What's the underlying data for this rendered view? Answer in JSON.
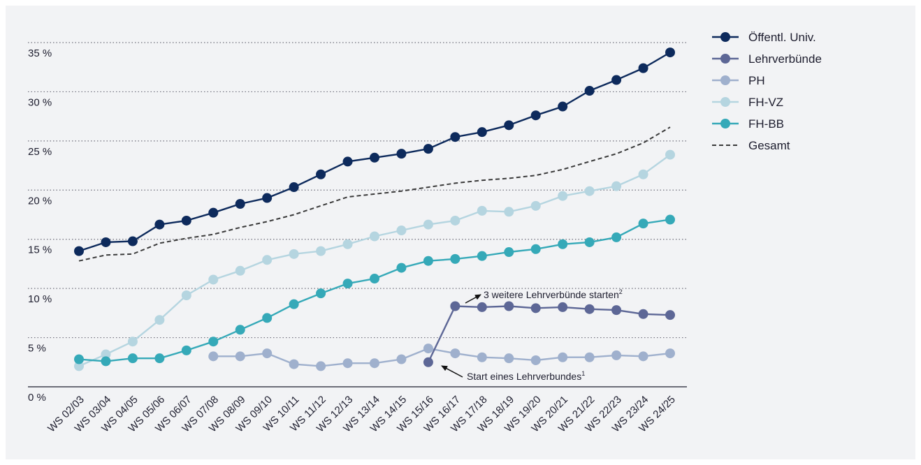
{
  "chart_data": {
    "type": "line",
    "title": "",
    "xlabel": "",
    "ylabel": "",
    "y_unit_suffix": " %",
    "ylim": [
      0,
      35
    ],
    "yticks": [
      0,
      5,
      10,
      15,
      20,
      25,
      30,
      35
    ],
    "grid": "horizontal dotted",
    "legend_position": "top-right",
    "categories": [
      "WS 02/03",
      "WS 03/04",
      "WS 04/05",
      "WS 05/06",
      "WS 06/07",
      "WS 07/08",
      "WS 08/09",
      "WS 09/10",
      "WS 10/11",
      "WS 11/12",
      "WS 12/13",
      "WS 13/14",
      "WS 14/15",
      "WS 15/16",
      "WS 16/17",
      "WS 17/18",
      "WS 18/19",
      "WS 19/20",
      "WS 20/21",
      "WS 21/22",
      "WS 22/23",
      "WS 23/24",
      "WS 24/25"
    ],
    "series": [
      {
        "name": "Öffentl. Univ.",
        "color": "#0d2a5c",
        "style": "marker",
        "values": [
          13.8,
          14.7,
          14.8,
          16.5,
          16.9,
          17.7,
          18.6,
          19.2,
          20.3,
          21.6,
          22.9,
          23.3,
          23.7,
          24.2,
          25.4,
          25.9,
          26.6,
          27.6,
          28.5,
          30.1,
          31.2,
          32.4,
          34.0
        ]
      },
      {
        "name": "Lehrverbünde",
        "color": "#5d6796",
        "style": "marker",
        "values": [
          null,
          null,
          null,
          null,
          null,
          null,
          null,
          null,
          null,
          null,
          null,
          null,
          null,
          2.5,
          8.2,
          8.1,
          8.2,
          8.0,
          8.1,
          7.9,
          7.8,
          7.4,
          7.3
        ]
      },
      {
        "name": "PH",
        "color": "#9fb0cd",
        "style": "marker",
        "values": [
          null,
          null,
          null,
          null,
          null,
          3.1,
          3.1,
          3.4,
          2.3,
          2.1,
          2.4,
          2.4,
          2.8,
          3.9,
          3.4,
          3.0,
          2.9,
          2.7,
          3.0,
          3.0,
          3.2,
          3.1,
          3.4
        ]
      },
      {
        "name": "FH-VZ",
        "color": "#b5d5e0",
        "style": "marker",
        "values": [
          2.1,
          3.3,
          4.6,
          6.8,
          9.3,
          10.9,
          11.8,
          12.9,
          13.5,
          13.8,
          14.5,
          15.3,
          15.9,
          16.5,
          16.9,
          17.9,
          17.8,
          18.4,
          19.4,
          19.9,
          20.4,
          21.6,
          23.6
        ]
      },
      {
        "name": "FH-BB",
        "color": "#35a9b8",
        "style": "marker",
        "values": [
          2.8,
          2.6,
          2.9,
          2.9,
          3.7,
          4.6,
          5.8,
          7.0,
          8.4,
          9.5,
          10.5,
          11.0,
          12.1,
          12.8,
          13.0,
          13.3,
          13.7,
          14.0,
          14.5,
          14.7,
          15.2,
          16.6,
          17.0
        ]
      },
      {
        "name": "Gesamt",
        "color": "#3a3a3a",
        "style": "dashed",
        "values": [
          12.8,
          13.4,
          13.5,
          14.6,
          15.1,
          15.5,
          16.2,
          16.8,
          17.5,
          18.4,
          19.3,
          19.6,
          19.9,
          20.3,
          20.7,
          21.0,
          21.2,
          21.5,
          22.1,
          22.9,
          23.7,
          24.8,
          26.4
        ]
      }
    ],
    "annotations": [
      {
        "text": "3 weitere Lehrverbünde starten",
        "superscript": "2",
        "points_to_category": "WS 16/17",
        "points_to_value": 8.2
      },
      {
        "text": "Start eines Lehrverbundes",
        "superscript": "1",
        "points_to_category": "WS 15/16",
        "points_to_value": 2.5
      }
    ]
  }
}
